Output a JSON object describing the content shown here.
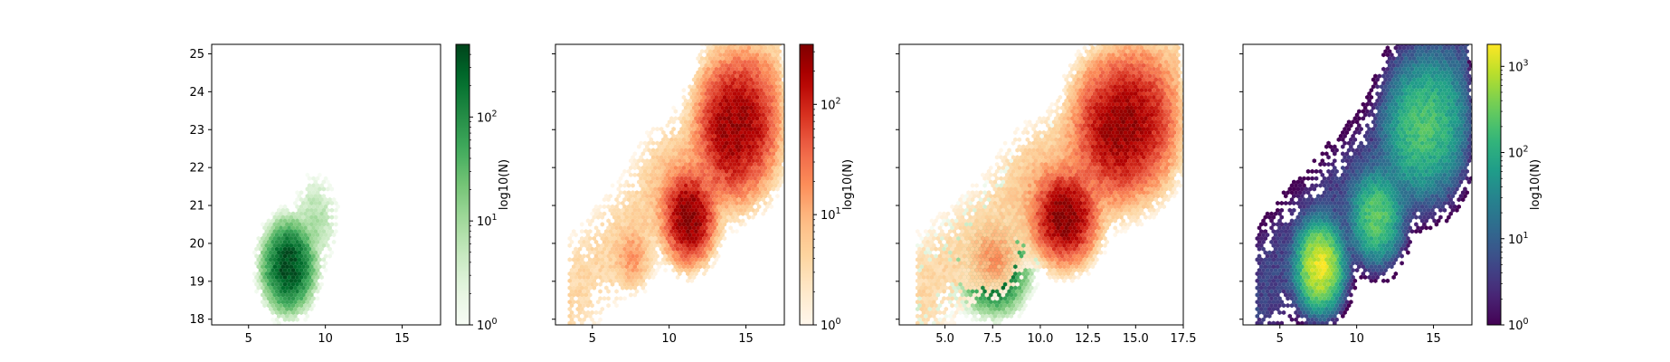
{
  "chart_data": [
    {
      "type": "hexbin",
      "colormap": "Greens",
      "xlim": [
        2.6,
        17.5
      ],
      "ylim": [
        17.85,
        25.25
      ],
      "xticks": [
        "5",
        "10",
        "15"
      ],
      "xtick_values": [
        5,
        10,
        15
      ],
      "yticks": [
        "18",
        "19",
        "20",
        "21",
        "22",
        "23",
        "24",
        "25"
      ],
      "ytick_values": [
        18,
        19,
        20,
        21,
        22,
        23,
        24,
        25
      ],
      "ytick_labels_shown": true,
      "clusters": [
        {
          "x": 7.6,
          "y": 19.4,
          "peak_count": 500,
          "spread_x": 0.65,
          "spread_y": 0.45
        },
        {
          "x": 9.4,
          "y": 20.6,
          "peak_count": 8,
          "spread_x": 0.7,
          "spread_y": 0.6
        }
      ],
      "colorbar": {
        "label": "log10(N)",
        "scale": "log",
        "range": [
          1,
          500
        ],
        "ticks": [
          1,
          10,
          100
        ],
        "tick_labels": [
          "10",
          "10",
          "10"
        ],
        "tick_exponents": [
          "0",
          "1",
          "2"
        ]
      }
    },
    {
      "type": "hexbin",
      "colormap": "OrRd",
      "xlim": [
        2.6,
        17.5
      ],
      "ylim": [
        17.85,
        25.25
      ],
      "xticks": [
        "5",
        "10",
        "15"
      ],
      "xtick_values": [
        5,
        10,
        15
      ],
      "ytick_values": [
        18,
        19,
        20,
        21,
        22,
        23,
        24,
        25
      ],
      "ytick_labels_shown": false,
      "clusters": [
        {
          "x": 11.3,
          "y": 20.7,
          "peak_count": 350,
          "spread_x": 0.7,
          "spread_y": 0.5
        },
        {
          "x": 13.8,
          "y": 23.0,
          "peak_count": 200,
          "spread_x": 0.9,
          "spread_y": 0.8
        },
        {
          "x": 15.2,
          "y": 23.2,
          "peak_count": 150,
          "spread_x": 0.9,
          "spread_y": 0.8
        },
        {
          "x": 7.6,
          "y": 19.6,
          "peak_count": 15,
          "spread_x": 0.6,
          "spread_y": 0.4
        },
        {
          "x": 10.5,
          "y": 21.6,
          "peak_count": 6,
          "spread_x": 1.3,
          "spread_y": 0.8
        }
      ],
      "colorbar": {
        "label": "log10(N)",
        "scale": "log",
        "range": [
          1,
          350
        ],
        "ticks": [
          1,
          10,
          100
        ],
        "tick_labels": [
          "10",
          "10",
          "10"
        ],
        "tick_exponents": [
          "0",
          "1",
          "2"
        ]
      }
    },
    {
      "type": "hexbin-overlay",
      "colormaps": [
        "Greens",
        "OrRd"
      ],
      "xlim": [
        2.6,
        17.5
      ],
      "ylim": [
        17.85,
        25.25
      ],
      "xticks": [
        "5.0",
        "7.5",
        "10.0",
        "12.5",
        "15.0",
        "17.5"
      ],
      "xtick_values": [
        5,
        7.5,
        10,
        12.5,
        15,
        17.5
      ],
      "ytick_values": [
        18,
        19,
        20,
        21,
        22,
        23,
        24,
        25
      ],
      "ytick_labels_shown": false,
      "layers": [
        "Greens",
        "OrRd"
      ]
    },
    {
      "type": "hexbin",
      "colormap": "viridis",
      "xlim": [
        2.6,
        17.5
      ],
      "ylim": [
        17.85,
        25.25
      ],
      "xticks": [
        "5",
        "10",
        "15"
      ],
      "xtick_values": [
        5,
        10,
        15
      ],
      "ytick_values": [
        18,
        19,
        20,
        21,
        22,
        23,
        24,
        25
      ],
      "ytick_labels_shown": false,
      "clusters": [
        {
          "x": 7.6,
          "y": 19.4,
          "peak_count": 1500,
          "spread_x": 0.6,
          "spread_y": 0.45
        },
        {
          "x": 11.3,
          "y": 20.7,
          "peak_count": 300,
          "spread_x": 0.7,
          "spread_y": 0.5
        },
        {
          "x": 13.8,
          "y": 23.0,
          "peak_count": 150,
          "spread_x": 0.9,
          "spread_y": 0.8
        },
        {
          "x": 15.2,
          "y": 23.2,
          "peak_count": 130,
          "spread_x": 0.9,
          "spread_y": 0.8
        }
      ],
      "colorbar": {
        "label": "log10(N)",
        "scale": "log",
        "range": [
          1,
          1800
        ],
        "ticks": [
          1,
          10,
          100,
          1000
        ],
        "tick_labels": [
          "10",
          "10",
          "10",
          "10"
        ],
        "tick_exponents": [
          "0",
          "1",
          "2",
          "3"
        ]
      }
    }
  ]
}
